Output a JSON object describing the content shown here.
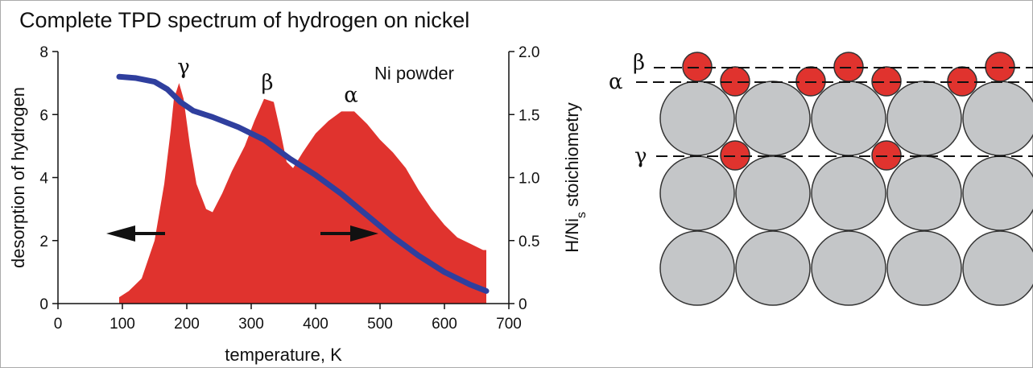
{
  "chart_data": {
    "type": "area-line",
    "title": "Complete TPD spectrum of hydrogen on nickel",
    "xlabel": "temperature, K",
    "ylabel": "desorption of hydrogen",
    "y2label": [
      "H/Ni",
      "s",
      " stoichiometry"
    ],
    "xlim": [
      0,
      700
    ],
    "xticks": [
      0,
      100,
      200,
      300,
      400,
      500,
      600,
      700
    ],
    "ylim": [
      0,
      8
    ],
    "yticks": [
      0,
      2,
      4,
      6,
      8
    ],
    "y2lim": [
      0,
      2
    ],
    "y2ticks": [
      0,
      0.5,
      {
        "value": 1,
        "label": "1.0"
      },
      1.5,
      {
        "value": 2,
        "label": "2.0"
      }
    ],
    "series": [
      {
        "type": "area",
        "color": "#e0332e",
        "x": [
          95,
          110,
          130,
          150,
          165,
          175,
          180,
          188,
          195,
          205,
          215,
          230,
          240,
          255,
          270,
          290,
          305,
          320,
          335,
          345,
          355,
          365,
          380,
          400,
          420,
          440,
          460,
          480,
          500,
          520,
          540,
          560,
          580,
          600,
          620,
          640,
          660,
          665
        ],
        "values": [
          0.2,
          0.4,
          0.8,
          2.0,
          3.8,
          5.5,
          6.5,
          7.0,
          6.5,
          5.0,
          3.8,
          3.0,
          2.9,
          3.5,
          4.2,
          5.0,
          5.8,
          6.5,
          6.4,
          5.5,
          4.5,
          4.3,
          4.8,
          5.4,
          5.8,
          6.1,
          6.1,
          5.7,
          5.2,
          4.8,
          4.3,
          3.6,
          3.0,
          2.5,
          2.1,
          1.9,
          1.7,
          1.7
        ]
      },
      {
        "type": "line",
        "axis": "y2",
        "color": "#2f3f9e",
        "x": [
          95,
          120,
          150,
          170,
          190,
          210,
          240,
          280,
          320,
          360,
          400,
          440,
          480,
          520,
          560,
          600,
          640,
          665
        ],
        "values": [
          1.8,
          1.79,
          1.76,
          1.7,
          1.6,
          1.53,
          1.48,
          1.4,
          1.3,
          1.15,
          1.02,
          0.87,
          0.7,
          0.53,
          0.38,
          0.25,
          0.15,
          0.1
        ]
      }
    ],
    "annotations": [
      {
        "text": "γ",
        "x": 195,
        "y": 7.3
      },
      {
        "text": "β",
        "x": 325,
        "y": 6.8
      },
      {
        "text": "α",
        "x": 455,
        "y": 6.4
      },
      {
        "text": "Ni powder",
        "x": 615,
        "y": 7.3
      }
    ]
  },
  "diagram": {
    "labels": {
      "beta": "β",
      "alpha": "α",
      "gamma": "γ"
    }
  }
}
